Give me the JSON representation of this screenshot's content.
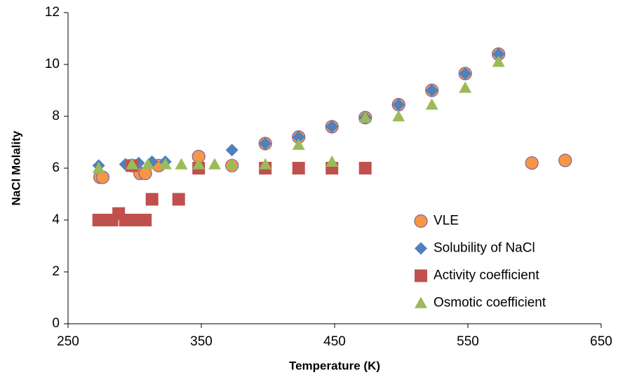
{
  "chart_data": {
    "type": "scatter",
    "x_label": "Temperature (K)",
    "y_label": "NaCl Molality",
    "xlim": [
      250,
      650
    ],
    "xticks": [
      250,
      350,
      450,
      550,
      650
    ],
    "ylim": [
      0,
      12
    ],
    "yticks": [
      0,
      2,
      4,
      6,
      8,
      10,
      12
    ],
    "grid": false,
    "legend_position": "lower right",
    "series": [
      {
        "name": "VLE",
        "color": "#f79646",
        "marker": "circle",
        "x": [
          274,
          276,
          298,
          304,
          308,
          318,
          348,
          373,
          398,
          423,
          448,
          473,
          498,
          523,
          548,
          573,
          598,
          623
        ],
        "values": [
          5.65,
          5.65,
          6.1,
          5.8,
          5.8,
          6.1,
          6.45,
          6.1,
          6.95,
          7.2,
          7.6,
          7.95,
          8.45,
          9.0,
          9.65,
          10.4,
          6.2,
          6.3
        ]
      },
      {
        "name": "Solubility of NaCl",
        "color": "#4f81bd",
        "marker": "diamond",
        "x": [
          273,
          293,
          298,
          303,
          313,
          323,
          373,
          398,
          423,
          448,
          473,
          498,
          523,
          548,
          573
        ],
        "values": [
          6.1,
          6.15,
          6.15,
          6.2,
          6.25,
          6.25,
          6.7,
          6.95,
          7.2,
          7.6,
          7.95,
          8.45,
          9.0,
          9.65,
          10.4
        ]
      },
      {
        "name": "Activity coefficient",
        "color": "#c0504d",
        "marker": "square",
        "x": [
          273,
          278,
          283,
          288,
          293,
          298,
          303,
          308,
          313,
          333,
          298,
          348,
          398,
          423,
          448,
          473
        ],
        "values": [
          4.0,
          4.0,
          4.0,
          4.25,
          4.0,
          4.0,
          4.0,
          4.0,
          4.8,
          4.8,
          6.1,
          6.0,
          6.0,
          6.0,
          6.0,
          6.0
        ]
      },
      {
        "name": "Osmotic coefficient",
        "color": "#9bbb59",
        "marker": "triangle",
        "x": [
          273,
          298,
          310,
          323,
          335,
          348,
          360,
          373,
          398,
          423,
          448,
          473,
          498,
          523,
          548,
          573
        ],
        "values": [
          6.0,
          6.15,
          6.15,
          6.15,
          6.15,
          6.15,
          6.15,
          6.15,
          6.15,
          6.9,
          6.25,
          7.95,
          8.0,
          8.45,
          9.1,
          10.1
        ]
      }
    ]
  }
}
